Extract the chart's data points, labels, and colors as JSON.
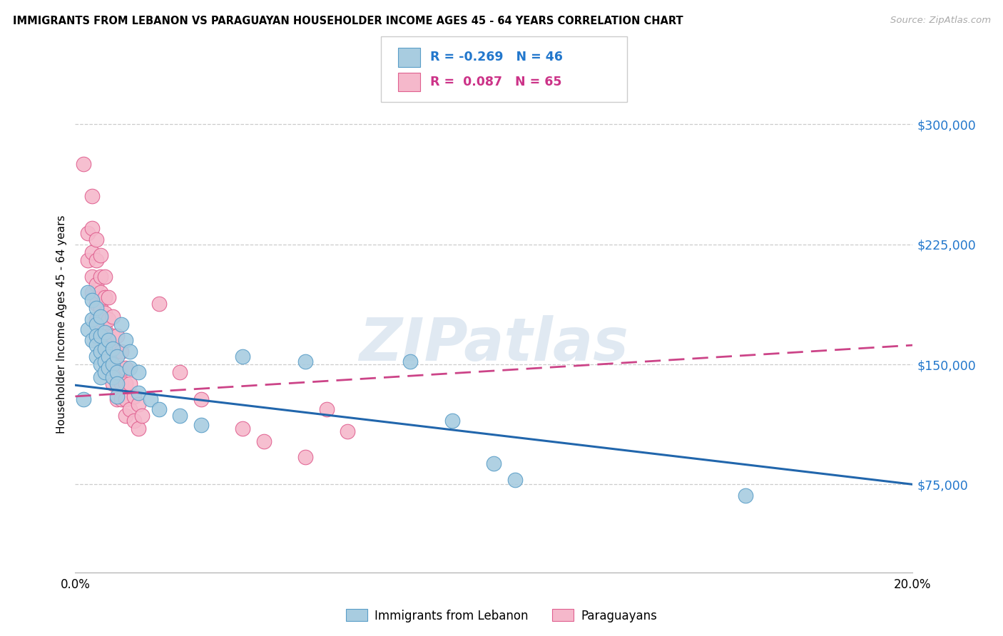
{
  "title": "IMMIGRANTS FROM LEBANON VS PARAGUAYAN HOUSEHOLDER INCOME AGES 45 - 64 YEARS CORRELATION CHART",
  "source": "Source: ZipAtlas.com",
  "ylabel": "Householder Income Ages 45 - 64 years",
  "xmin": 0.0,
  "xmax": 0.2,
  "ymin": 20000,
  "ymax": 330000,
  "ytick_vals": [
    75000,
    150000,
    225000,
    300000
  ],
  "ytick_labels": [
    "$75,000",
    "$150,000",
    "$225,000",
    "$300,000"
  ],
  "xtick_vals": [
    0.0,
    0.04,
    0.08,
    0.12,
    0.16,
    0.2
  ],
  "xtick_labels": [
    "0.0%",
    "",
    "",
    "",
    "",
    "20.0%"
  ],
  "legend_label_blue": "Immigrants from Lebanon",
  "legend_label_pink": "Paraguayans",
  "blue_fill": "#a8cce0",
  "pink_fill": "#f5b8cb",
  "blue_edge": "#5a9ec8",
  "pink_edge": "#e06090",
  "blue_line": "#2166ac",
  "pink_line": "#cc4488",
  "watermark": "ZIPatlas",
  "blue_dots": [
    [
      0.002,
      128000
    ],
    [
      0.003,
      195000
    ],
    [
      0.003,
      172000
    ],
    [
      0.004,
      190000
    ],
    [
      0.004,
      178000
    ],
    [
      0.004,
      165000
    ],
    [
      0.005,
      185000
    ],
    [
      0.005,
      175000
    ],
    [
      0.005,
      168000
    ],
    [
      0.005,
      162000
    ],
    [
      0.005,
      155000
    ],
    [
      0.006,
      180000
    ],
    [
      0.006,
      168000
    ],
    [
      0.006,
      158000
    ],
    [
      0.006,
      150000
    ],
    [
      0.006,
      142000
    ],
    [
      0.007,
      170000
    ],
    [
      0.007,
      160000
    ],
    [
      0.007,
      152000
    ],
    [
      0.007,
      145000
    ],
    [
      0.008,
      165000
    ],
    [
      0.008,
      155000
    ],
    [
      0.008,
      148000
    ],
    [
      0.009,
      160000
    ],
    [
      0.009,
      150000
    ],
    [
      0.009,
      142000
    ],
    [
      0.01,
      155000
    ],
    [
      0.01,
      145000
    ],
    [
      0.01,
      138000
    ],
    [
      0.01,
      130000
    ],
    [
      0.011,
      175000
    ],
    [
      0.012,
      165000
    ],
    [
      0.013,
      158000
    ],
    [
      0.013,
      148000
    ],
    [
      0.015,
      145000
    ],
    [
      0.015,
      132000
    ],
    [
      0.018,
      128000
    ],
    [
      0.02,
      122000
    ],
    [
      0.025,
      118000
    ],
    [
      0.03,
      112000
    ],
    [
      0.04,
      155000
    ],
    [
      0.055,
      152000
    ],
    [
      0.08,
      152000
    ],
    [
      0.09,
      115000
    ],
    [
      0.1,
      88000
    ],
    [
      0.105,
      78000
    ],
    [
      0.16,
      68000
    ]
  ],
  "pink_dots": [
    [
      0.002,
      275000
    ],
    [
      0.003,
      232000
    ],
    [
      0.003,
      215000
    ],
    [
      0.004,
      255000
    ],
    [
      0.004,
      235000
    ],
    [
      0.004,
      220000
    ],
    [
      0.004,
      205000
    ],
    [
      0.004,
      195000
    ],
    [
      0.005,
      228000
    ],
    [
      0.005,
      215000
    ],
    [
      0.005,
      200000
    ],
    [
      0.005,
      188000
    ],
    [
      0.005,
      178000
    ],
    [
      0.005,
      168000
    ],
    [
      0.006,
      218000
    ],
    [
      0.006,
      205000
    ],
    [
      0.006,
      195000
    ],
    [
      0.006,
      185000
    ],
    [
      0.006,
      172000
    ],
    [
      0.006,
      162000
    ],
    [
      0.007,
      205000
    ],
    [
      0.007,
      192000
    ],
    [
      0.007,
      182000
    ],
    [
      0.007,
      172000
    ],
    [
      0.008,
      192000
    ],
    [
      0.008,
      178000
    ],
    [
      0.008,
      168000
    ],
    [
      0.008,
      158000
    ],
    [
      0.008,
      148000
    ],
    [
      0.009,
      180000
    ],
    [
      0.009,
      168000
    ],
    [
      0.009,
      158000
    ],
    [
      0.009,
      148000
    ],
    [
      0.009,
      138000
    ],
    [
      0.01,
      168000
    ],
    [
      0.01,
      158000
    ],
    [
      0.01,
      148000
    ],
    [
      0.01,
      138000
    ],
    [
      0.01,
      128000
    ],
    [
      0.011,
      158000
    ],
    [
      0.011,
      148000
    ],
    [
      0.011,
      138000
    ],
    [
      0.011,
      128000
    ],
    [
      0.012,
      148000
    ],
    [
      0.012,
      138000
    ],
    [
      0.012,
      128000
    ],
    [
      0.012,
      118000
    ],
    [
      0.013,
      138000
    ],
    [
      0.013,
      122000
    ],
    [
      0.014,
      130000
    ],
    [
      0.014,
      115000
    ],
    [
      0.015,
      125000
    ],
    [
      0.015,
      110000
    ],
    [
      0.016,
      118000
    ],
    [
      0.02,
      188000
    ],
    [
      0.025,
      145000
    ],
    [
      0.03,
      128000
    ],
    [
      0.04,
      110000
    ],
    [
      0.045,
      102000
    ],
    [
      0.055,
      92000
    ],
    [
      0.06,
      122000
    ],
    [
      0.065,
      108000
    ]
  ],
  "blue_trend_x": [
    0.0,
    0.2
  ],
  "blue_trend_y": [
    137000,
    75000
  ],
  "pink_trend_x": [
    0.0,
    0.2
  ],
  "pink_trend_y": [
    130000,
    162000
  ]
}
